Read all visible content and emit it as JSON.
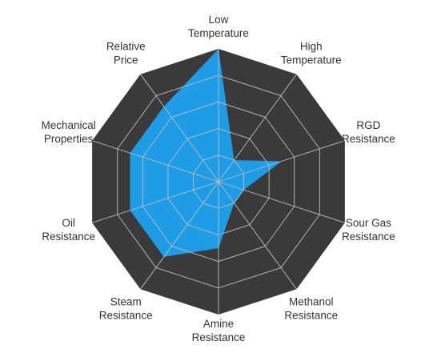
{
  "chart_data": {
    "type": "radar",
    "title": "",
    "axes": [
      {
        "label_lines": [
          "Low",
          "Temperature"
        ]
      },
      {
        "label_lines": [
          "High",
          "Temperature"
        ]
      },
      {
        "label_lines": [
          "RGD",
          "Resistance"
        ]
      },
      {
        "label_lines": [
          "Sour Gas",
          "Resistance"
        ]
      },
      {
        "label_lines": [
          "Methanol",
          "Resistance"
        ]
      },
      {
        "label_lines": [
          "Amine",
          "Resistance"
        ]
      },
      {
        "label_lines": [
          "Steam",
          "Resistance"
        ]
      },
      {
        "label_lines": [
          "Oil",
          "Resistance"
        ]
      },
      {
        "label_lines": [
          "Mechanical",
          "Properties"
        ]
      },
      {
        "label_lines": [
          "Relative",
          "Price"
        ]
      }
    ],
    "rmax": 10,
    "grid_levels": [
      2,
      4,
      6,
      8,
      10
    ],
    "grid": true,
    "legend": "none",
    "series": [
      {
        "values": [
          10,
          2,
          5,
          2,
          2,
          5,
          7,
          7,
          7,
          7
        ]
      }
    ],
    "colors": {
      "background_polygon": "#3a3a3a",
      "grid_lines": "#bdbdbd",
      "series_fill": "#1e9ce6",
      "label_text": "#333333"
    }
  }
}
